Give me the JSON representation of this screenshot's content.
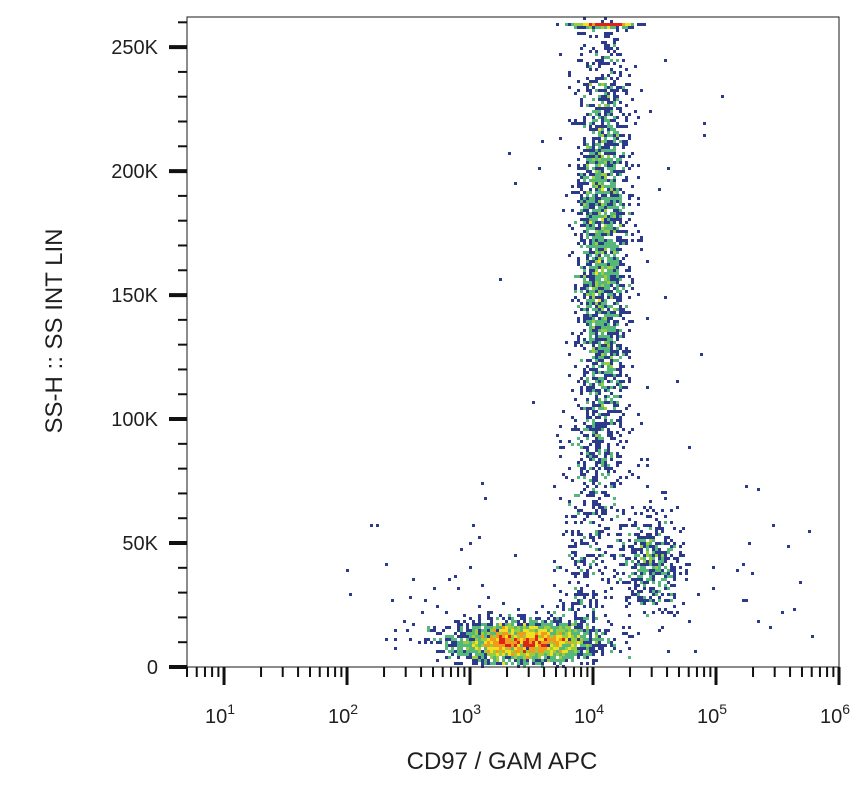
{
  "chart_data": {
    "type": "scatter",
    "subtype": "density-dot-plot",
    "title": "",
    "xlabel": "CD97  /  GAM APC",
    "ylabel": "SS-H :: SS INT LIN",
    "x_scale": "log",
    "xlim": [
      5,
      1000000
    ],
    "ylim": [
      0,
      262144
    ],
    "x_tick_labels": [
      {
        "base": "10",
        "exp": "1",
        "value": 10
      },
      {
        "base": "10",
        "exp": "2",
        "value": 100
      },
      {
        "base": "10",
        "exp": "3",
        "value": 1000
      },
      {
        "base": "10",
        "exp": "4",
        "value": 10000
      },
      {
        "base": "10",
        "exp": "5",
        "value": 100000
      },
      {
        "base": "10",
        "exp": "6",
        "value": 1000000
      }
    ],
    "y_tick_labels": [
      {
        "label": "0",
        "value": 0
      },
      {
        "label": "50K",
        "value": 50000
      },
      {
        "label": "100K",
        "value": 100000
      },
      {
        "label": "150K",
        "value": 150000
      },
      {
        "label": "200K",
        "value": 200000
      },
      {
        "label": "250K",
        "value": 250000
      }
    ],
    "grid": false,
    "legend": "none",
    "color_scale": [
      "#2c3a8c",
      "#2f6fb5",
      "#35a3c8",
      "#55b77a",
      "#9acd3b",
      "#f0e020",
      "#f29a1c",
      "#e02318"
    ],
    "populations": [
      {
        "center_x": 2800,
        "center_y": 10000,
        "spread_log_x": 0.28,
        "spread_y": 4000,
        "count": 2800,
        "density": "highest"
      },
      {
        "center_x": 12000,
        "center_y": 170000,
        "spread_log_x": 0.1,
        "spread_y": 45000,
        "count": 2400,
        "density": "medium"
      },
      {
        "center_x": 30000,
        "center_y": 42000,
        "spread_log_x": 0.12,
        "spread_y": 9000,
        "count": 450,
        "density": "medium"
      },
      {
        "center_x": 12000,
        "center_y": 259000,
        "spread_log_x": 0.12,
        "spread_y": 800,
        "count": 260,
        "density": "saturated-at-top"
      }
    ]
  }
}
